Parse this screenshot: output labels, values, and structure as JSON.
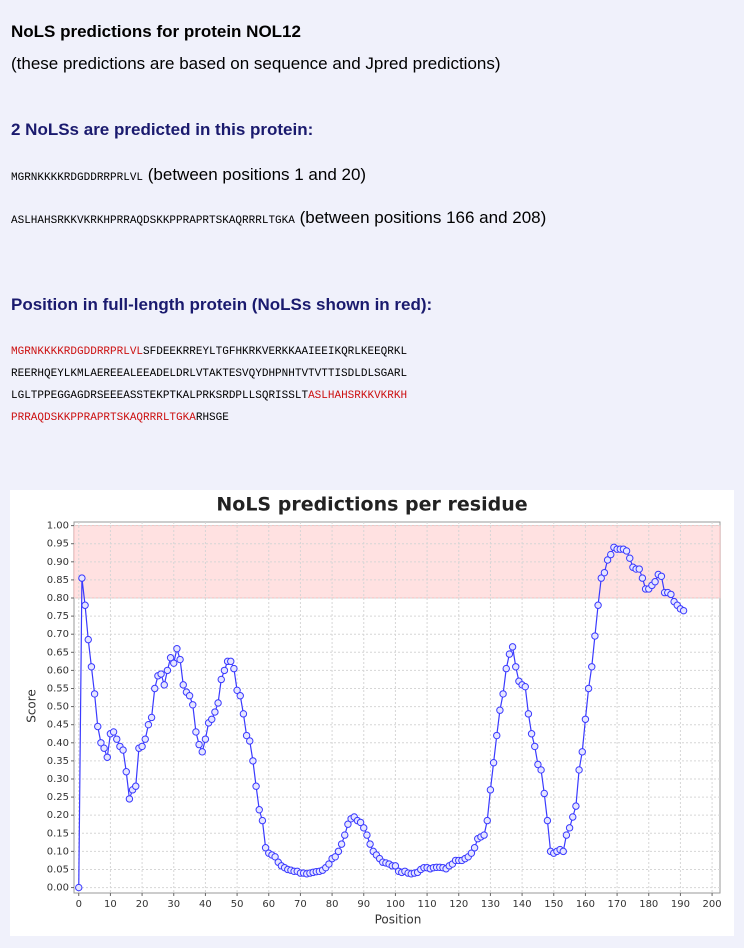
{
  "header": {
    "title": "NoLS predictions for protein NOL12",
    "subtitle": "(these predictions are based on sequence and Jpred predictions)"
  },
  "nols": {
    "heading": "2 NoLSs are predicted in this protein:",
    "items": [
      {
        "sequence": "MGRNKKKKRDGDDRRPRLVL",
        "range": "(between positions 1 and 20)"
      },
      {
        "sequence": "ASLHAHSRKKVKRKHPRRAQDSKKPPRAPRTSKAQRRRLTGKA",
        "range": "(between positions 166 and 208)"
      }
    ]
  },
  "full_sequence": {
    "heading": "Position in full-length protein (NoLSs shown in red):",
    "lines": [
      [
        {
          "text": "MGRNKKKKRDGDDRRPRLVL",
          "red": true
        },
        {
          "text": "SFDEEKRREYLTGFHKRKVERKKAAIEEIKQRLKEEQRKL",
          "red": false
        }
      ],
      [
        {
          "text": "REERHQEYLKMLAEREEALEEADELDRLVTAKTESVQYDHPNHTVTVTTISDLDLSGARL",
          "red": false
        }
      ],
      [
        {
          "text": "LGLTPPEGGAGDRSEEEASSTEKPTKALPRKSRDPLLSQRISSLT",
          "red": false
        },
        {
          "text": "ASLHAHSRKKVKRKH",
          "red": true
        }
      ],
      [
        {
          "text": "PRRAQDSKKPPRAPRTSKAQRRRLTGKA",
          "red": true
        },
        {
          "text": "RHSGE",
          "red": false
        }
      ]
    ]
  },
  "chart_data": {
    "type": "line",
    "title": "NoLS predictions per residue",
    "xlabel": "Position",
    "ylabel": "Score",
    "xlim": [
      -1.5,
      202.5
    ],
    "ylim": [
      -0.015,
      1.01
    ],
    "xticks": [
      0,
      10,
      20,
      30,
      40,
      50,
      60,
      70,
      80,
      90,
      100,
      110,
      120,
      130,
      140,
      150,
      160,
      170,
      180,
      190,
      200
    ],
    "yticks": [
      {
        "value": 0,
        "label": "0.00"
      },
      {
        "value": 0.05,
        "label": "0.05"
      },
      {
        "value": 0.1,
        "label": "0.10"
      },
      {
        "value": 0.15,
        "label": "0.15"
      },
      {
        "value": 0.2,
        "label": "0.20"
      },
      {
        "value": 0.25,
        "label": "0.25"
      },
      {
        "value": 0.3,
        "label": "0.30"
      },
      {
        "value": 0.35,
        "label": "0.35"
      },
      {
        "value": 0.4,
        "label": "0.40"
      },
      {
        "value": 0.45,
        "label": "0.45"
      },
      {
        "value": 0.5,
        "label": "0.50"
      },
      {
        "value": 0.55,
        "label": "0.55"
      },
      {
        "value": 0.6,
        "label": "0.60"
      },
      {
        "value": 0.65,
        "label": "0.65"
      },
      {
        "value": 0.7,
        "label": "0.70"
      },
      {
        "value": 0.75,
        "label": "0.75"
      },
      {
        "value": 0.8,
        "label": "0.80"
      },
      {
        "value": 0.85,
        "label": "0.85"
      },
      {
        "value": 0.9,
        "label": "0.90"
      },
      {
        "value": 0.95,
        "label": "0.95"
      },
      {
        "value": 1,
        "label": "1.00"
      }
    ],
    "grid": true,
    "band": [
      0.8,
      1.0
    ],
    "band_color": "#ffe1e1",
    "x": [
      0,
      1,
      2,
      3,
      4,
      5,
      6,
      7,
      8,
      9,
      10,
      11,
      12,
      13,
      14,
      15,
      16,
      17,
      18,
      19,
      20,
      21,
      22,
      23,
      24,
      25,
      26,
      27,
      28,
      29,
      30,
      31,
      32,
      33,
      34,
      35,
      36,
      37,
      38,
      39,
      40,
      41,
      42,
      43,
      44,
      45,
      46,
      47,
      48,
      49,
      50,
      51,
      52,
      53,
      54,
      55,
      56,
      57,
      58,
      59,
      60,
      61,
      62,
      63,
      64,
      65,
      66,
      67,
      68,
      69,
      70,
      71,
      72,
      73,
      74,
      75,
      76,
      77,
      78,
      79,
      80,
      81,
      82,
      83,
      84,
      85,
      86,
      87,
      88,
      89,
      90,
      91,
      92,
      93,
      94,
      95,
      96,
      97,
      98,
      99,
      100,
      101,
      102,
      103,
      104,
      105,
      106,
      107,
      108,
      109,
      110,
      111,
      112,
      113,
      114,
      115,
      116,
      117,
      118,
      119,
      120,
      121,
      122,
      123,
      124,
      125,
      126,
      127,
      128,
      129,
      130,
      131,
      132,
      133,
      134,
      135,
      136,
      137,
      138,
      139,
      140,
      141,
      142,
      143,
      144,
      145,
      146,
      147,
      148,
      149,
      150,
      151,
      152,
      153,
      154,
      155,
      156,
      157,
      158,
      159,
      160,
      161,
      162,
      163,
      164,
      165,
      166,
      167,
      168,
      169,
      170,
      171,
      172,
      173,
      174,
      175,
      176,
      177,
      178,
      179,
      180,
      181,
      182,
      183,
      184,
      185,
      186,
      187,
      188,
      189,
      190,
      191
    ],
    "series": [
      {
        "color": "#3a3aff",
        "values": [
          0,
          0.855,
          0.78,
          0.685,
          0.61,
          0.535,
          0.445,
          0.4,
          0.385,
          0.36,
          0.425,
          0.43,
          0.41,
          0.39,
          0.38,
          0.32,
          0.245,
          0.27,
          0.28,
          0.385,
          0.39,
          0.41,
          0.45,
          0.47,
          0.55,
          0.585,
          0.59,
          0.56,
          0.6,
          0.635,
          0.62,
          0.66,
          0.63,
          0.56,
          0.54,
          0.53,
          0.505,
          0.43,
          0.395,
          0.375,
          0.41,
          0.455,
          0.465,
          0.485,
          0.51,
          0.575,
          0.6,
          0.625,
          0.625,
          0.605,
          0.545,
          0.53,
          0.48,
          0.42,
          0.405,
          0.35,
          0.28,
          0.215,
          0.185,
          0.11,
          0.095,
          0.09,
          0.085,
          0.07,
          0.06,
          0.055,
          0.05,
          0.048,
          0.045,
          0.045,
          0.04,
          0.04,
          0.038,
          0.04,
          0.042,
          0.044,
          0.045,
          0.048,
          0.055,
          0.065,
          0.08,
          0.085,
          0.1,
          0.12,
          0.145,
          0.175,
          0.19,
          0.195,
          0.185,
          0.18,
          0.165,
          0.145,
          0.12,
          0.1,
          0.09,
          0.08,
          0.07,
          0.068,
          0.065,
          0.06,
          0.06,
          0.045,
          0.042,
          0.045,
          0.04,
          0.038,
          0.04,
          0.042,
          0.05,
          0.055,
          0.055,
          0.052,
          0.055,
          0.056,
          0.056,
          0.055,
          0.052,
          0.06,
          0.065,
          0.075,
          0.075,
          0.075,
          0.08,
          0.085,
          0.095,
          0.11,
          0.135,
          0.14,
          0.145,
          0.185,
          0.27,
          0.345,
          0.42,
          0.49,
          0.535,
          0.605,
          0.645,
          0.665,
          0.61,
          0.57,
          0.56,
          0.555,
          0.48,
          0.425,
          0.39,
          0.34,
          0.325,
          0.26,
          0.185,
          0.1,
          0.095,
          0.1,
          0.105,
          0.1,
          0.145,
          0.165,
          0.195,
          0.225,
          0.325,
          0.375,
          0.465,
          0.55,
          0.61,
          0.695,
          0.78,
          0.855,
          0.87,
          0.905,
          0.92,
          0.94,
          0.935,
          0.935,
          0.935,
          0.93,
          0.91,
          0.885,
          0.88,
          0.88,
          0.855,
          0.825,
          0.825,
          0.835,
          0.845,
          0.865,
          0.86,
          0.815,
          0.815,
          0.81,
          0.79,
          0.78,
          0.77,
          0.765
        ]
      }
    ]
  }
}
